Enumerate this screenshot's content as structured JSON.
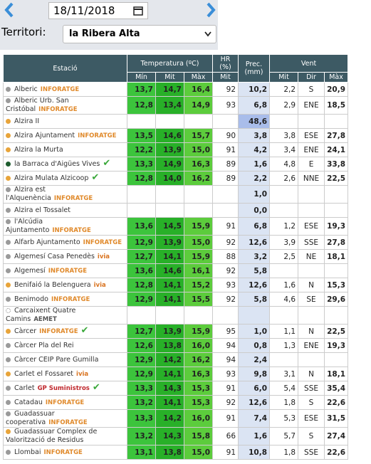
{
  "date": "18/11/2018",
  "territory": {
    "label": "Territori:",
    "value": "la Ribera Alta"
  },
  "table": {
    "header": {
      "station": "Estació",
      "temperature": "Temperatura (ºC)",
      "humidity": "HR (%)",
      "precipitation": "Prec. (mm)",
      "wind": "Vent",
      "sub": [
        "Mín",
        "Mit",
        "Màx",
        "Mit",
        "Mit",
        "Dir",
        "Màx"
      ]
    },
    "rows": [
      {
        "name": "Alberic",
        "brand": "INFORATGE",
        "brand_color": "#e0892a",
        "dot": "#9a9a9a",
        "cells": [
          "13,7",
          "14,7",
          "16,4",
          "92",
          "10,2",
          "2,2",
          "S",
          "20,9"
        ]
      },
      {
        "name": "Alberic Urb. San Cristóbal",
        "brand": "INFORATGE",
        "brand_color": "#e0892a",
        "dot": "#9a9a9a",
        "cells": [
          "12,8",
          "13,4",
          "14,9",
          "93",
          "6,8",
          "2,9",
          "ENE",
          "18,5"
        ]
      },
      {
        "name": "Alzira II",
        "dot": "#e8a43a",
        "cells": [
          null,
          null,
          null,
          null,
          "48,6",
          null,
          null,
          null
        ]
      },
      {
        "name": "Alzira Ajuntament",
        "brand": "INFORATGE",
        "brand_color": "#e0892a",
        "dot": "#e8a43a",
        "cells": [
          "13,5",
          "14,6",
          "15,7",
          "90",
          "3,8",
          "3,8",
          "ESE",
          "27,8"
        ]
      },
      {
        "name": "Alzira la Murta",
        "dot": "#e8a43a",
        "cells": [
          "12,2",
          "13,9",
          "15,0",
          "91",
          "4,2",
          "3,4",
          "ENE",
          "24,1"
        ]
      },
      {
        "name": "la Barraca d'Aigües Vives",
        "dot": "#1e5c2e",
        "verified": true,
        "cells": [
          "13,3",
          "14,9",
          "16,3",
          "89",
          "1,6",
          "4,8",
          "E",
          "33,8"
        ]
      },
      {
        "name": "Alzira Mulata Alzicoop",
        "dot": "#e8a43a",
        "verified": true,
        "cells": [
          "12,8",
          "14,0",
          "16,2",
          "89",
          "2,2",
          "2,6",
          "NNE",
          "22,5"
        ]
      },
      {
        "name": "Alzira est l'Alquenència",
        "brand": "INFORATGE",
        "brand_color": "#e0892a",
        "dot": "#9a9a9a",
        "cells": [
          null,
          null,
          null,
          null,
          "1,0",
          null,
          null,
          null
        ]
      },
      {
        "name": "Alzira el Tossalet",
        "dot": "#9a9a9a",
        "cells": [
          null,
          null,
          null,
          null,
          "0,0",
          null,
          null,
          null
        ]
      },
      {
        "name": "l'Alcúdia Ajuntamento",
        "brand": "INFORATGE",
        "brand_color": "#e0892a",
        "dot": "#9a9a9a",
        "cells": [
          "13,6",
          "14,5",
          "15,9",
          "91",
          "6,8",
          "1,2",
          "ESE",
          "19,3"
        ]
      },
      {
        "name": "Alfarb Ajuntamento",
        "brand": "INFORATGE",
        "brand_color": "#e0892a",
        "dot": "#9a9a9a",
        "cells": [
          "12,9",
          "13,9",
          "15,0",
          "92",
          "12,6",
          "3,9",
          "SSE",
          "27,8"
        ]
      },
      {
        "name": "Algemesí Casa Penedès",
        "brand": "ivia",
        "brand_color": "#d9731f",
        "dot": "#9a9a9a",
        "cells": [
          "12,7",
          "14,1",
          "15,9",
          "88",
          "3,2",
          "2,5",
          "NE",
          "18,1"
        ]
      },
      {
        "name": "Algemesí",
        "brand": "INFORATGE",
        "brand_color": "#e0892a",
        "dot": "#9a9a9a",
        "cells": [
          "13,6",
          "14,6",
          "16,1",
          "92",
          "5,8",
          null,
          null,
          null
        ]
      },
      {
        "name": "Benifaió la Belenguera",
        "brand": "ivia",
        "brand_color": "#d9731f",
        "dot": "#e8a43a",
        "cells": [
          "12,8",
          "14,1",
          "15,2",
          "93",
          "12,6",
          "1,6",
          "N",
          "15,3"
        ]
      },
      {
        "name": "Benimodo",
        "brand": "INFORATGE",
        "brand_color": "#e0892a",
        "dot": "#9a9a9a",
        "cells": [
          "12,9",
          "14,1",
          "15,5",
          "92",
          "5,8",
          "4,6",
          "SE",
          "29,6"
        ]
      },
      {
        "name": "Carcaixent Quatre Camins",
        "brand": "AEMET",
        "brand_color": "#555555",
        "dot": "#ffffff",
        "cells": [
          null,
          null,
          null,
          null,
          null,
          null,
          null,
          null
        ]
      },
      {
        "name": "Càrcer",
        "brand": "INFORATGE",
        "brand_color": "#e0892a",
        "dot": "#e8a43a",
        "verified": true,
        "cells": [
          "12,7",
          "13,9",
          "15,9",
          "95",
          "1,0",
          "1,1",
          "N",
          "22,5"
        ]
      },
      {
        "name": "Càrcer Pla del Rei",
        "dot": "#9a9a9a",
        "cells": [
          "12,6",
          "13,8",
          "16,0",
          "94",
          "0,8",
          "1,3",
          "ENE",
          "19,3"
        ]
      },
      {
        "name": "Càrcer CEIP Pare Gumilla",
        "dot": "#9a9a9a",
        "cells": [
          "12,9",
          "14,2",
          "16,2",
          "94",
          "2,4",
          null,
          null,
          null
        ]
      },
      {
        "name": "Carlet el Fossaret",
        "brand": "ivia",
        "brand_color": "#d9731f",
        "dot": "#e8a43a",
        "cells": [
          "12,9",
          "14,1",
          "16,3",
          "93",
          "9,8",
          "3,1",
          "N",
          "18,1"
        ]
      },
      {
        "name": "Carlet",
        "brand": "GP Suministros",
        "brand_color": "#c0282d",
        "dot": "#9a9a9a",
        "verified": true,
        "cells": [
          "13,3",
          "14,3",
          "15,3",
          "91",
          "6,0",
          "5,4",
          "SSE",
          "35,4"
        ]
      },
      {
        "name": "Catadau",
        "brand": "INFORATGE",
        "brand_color": "#e0892a",
        "dot": "#9a9a9a",
        "cells": [
          "13,2",
          "14,1",
          "15,3",
          "92",
          "12,6",
          "1,8",
          "S",
          "22,6"
        ]
      },
      {
        "name": "Guadassuar cooperativa",
        "brand": "INFORATGE",
        "brand_color": "#e0892a",
        "dot": "#9a9a9a",
        "cells": [
          "13,3",
          "14,2",
          "16,0",
          "91",
          "7,4",
          "5,3",
          "ESE",
          "31,5"
        ]
      },
      {
        "name": "Guadassuar Complex de Valorització de Residus",
        "dot": "#e8a43a",
        "cells": [
          "13,2",
          "14,3",
          "15,8",
          "66",
          "1,6",
          "5,7",
          "S",
          "27,4"
        ]
      },
      {
        "name": "Llombai",
        "brand": "INFORATGE",
        "brand_color": "#e0892a",
        "dot": "#9a9a9a",
        "cells": [
          "13,1",
          "13,8",
          "15,0",
          "91",
          "10,8",
          "1,8",
          "SSE",
          "22,6"
        ]
      }
    ]
  }
}
